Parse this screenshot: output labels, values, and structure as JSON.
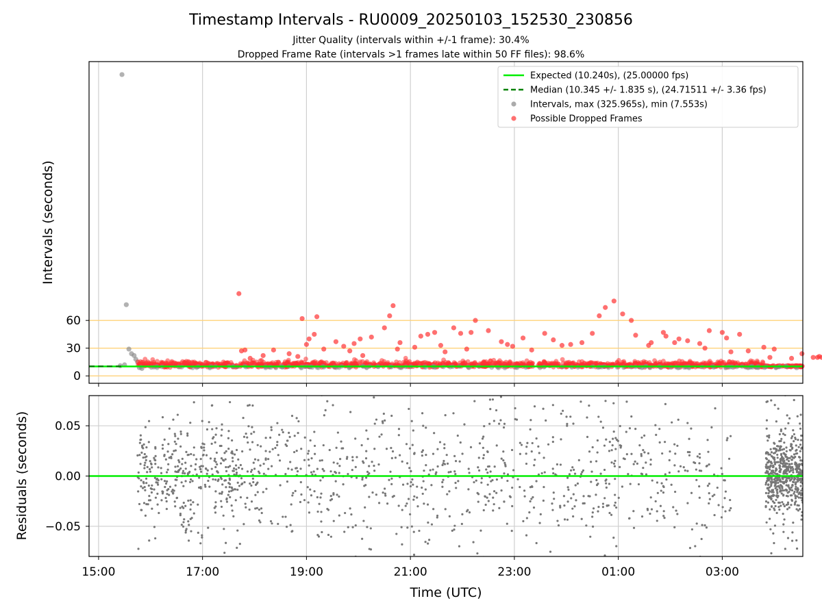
{
  "chart_data": [
    {
      "type": "scatter",
      "panel": "intervals",
      "title": "Timestamp Intervals - RU0009_20250103_152530_230856",
      "subtitle_lines": [
        "Jitter Quality (intervals within +/-1 frame): 30.4%",
        "Dropped Frame Rate (intervals >1 frames late within 50 FF files): 98.6%"
      ],
      "ylabel": "Intervals (seconds)",
      "x_range_utc": [
        "14:49",
        "04:33"
      ],
      "y_range": [
        -8,
        340
      ],
      "y_ticks": [
        0,
        30,
        60
      ],
      "y_tick_labels": [
        "0",
        "30",
        "60"
      ],
      "x_ticks": [
        "15:00",
        "17:00",
        "19:00",
        "21:00",
        "23:00",
        "01:00",
        "03:00"
      ],
      "reference_lines": [
        0,
        30,
        60
      ],
      "reference_line_color": "#ffd27a",
      "grid": "vertical",
      "legend_position": "top-right",
      "legend": [
        {
          "label": "Expected (10.240s), (25.00000 fps)",
          "kind": "line",
          "color": "#00ee00",
          "dash": false
        },
        {
          "label": "Median (10.345 +/- 1.835 s), (24.71511 +/- 3.36 fps)",
          "kind": "line",
          "color": "#008000",
          "dash": true
        },
        {
          "label": "Intervals, max (325.965s), min (7.553s)",
          "kind": "marker",
          "color": "#888888"
        },
        {
          "label": "Possible Dropped Frames",
          "kind": "marker",
          "color": "#ff3333"
        }
      ],
      "series": [
        {
          "name": "Expected (10.240s), (25.00000 fps)",
          "kind": "hline",
          "value": 10.24,
          "color": "#00ee00"
        },
        {
          "name": "Median (10.345 +/- 1.835 s), (24.71511 +/- 3.36 fps)",
          "kind": "hline_partial",
          "value": 10.345,
          "x_start": "14:49",
          "x_end": "15:30",
          "color": "#008000"
        },
        {
          "name": "Intervals, max (325.965s), min (7.553s)",
          "kind": "points",
          "color": "#888888",
          "points": [
            [
              "15:27",
              325.965
            ],
            [
              "15:32",
              77
            ],
            [
              "15:35",
              29
            ],
            [
              "15:38",
              24
            ],
            [
              "15:41",
              22
            ],
            [
              "15:43",
              18
            ],
            [
              "15:45",
              15
            ],
            [
              "15:25",
              11
            ],
            [
              "15:30",
              12
            ],
            [
              "15:47",
              9
            ],
            [
              "15:50",
              8
            ],
            [
              "15:52",
              13
            ]
          ]
        },
        {
          "name": "Possible Dropped Frames",
          "kind": "points",
          "color": "#ff3333",
          "band": {
            "from": "15:45",
            "to": "04:33",
            "low": 9,
            "high": 15
          },
          "points": [
            [
              "17:42",
              89
            ],
            [
              "18:55",
              62
            ],
            [
              "19:03",
              40
            ],
            [
              "19:09",
              45
            ],
            [
              "19:12",
              64
            ],
            [
              "17:45",
              27
            ],
            [
              "17:49",
              28
            ],
            [
              "18:22",
              28
            ],
            [
              "18:50",
              21
            ],
            [
              "19:00",
              34
            ],
            [
              "19:20",
              29
            ],
            [
              "19:34",
              37
            ],
            [
              "19:43",
              32
            ],
            [
              "19:55",
              35
            ],
            [
              "20:02",
              40
            ],
            [
              "20:15",
              42
            ],
            [
              "20:30",
              52
            ],
            [
              "20:36",
              65
            ],
            [
              "20:45",
              29
            ],
            [
              "20:48",
              36
            ],
            [
              "20:40",
              76
            ],
            [
              "21:05",
              31
            ],
            [
              "21:12",
              43
            ],
            [
              "21:20",
              45
            ],
            [
              "21:28",
              47
            ],
            [
              "21:35",
              33
            ],
            [
              "21:50",
              52
            ],
            [
              "21:58",
              46
            ],
            [
              "22:10",
              47
            ],
            [
              "22:15",
              60
            ],
            [
              "22:30",
              49
            ],
            [
              "22:45",
              37
            ],
            [
              "22:52",
              34
            ],
            [
              "22:58",
              32
            ],
            [
              "23:10",
              41
            ],
            [
              "23:35",
              46
            ],
            [
              "23:45",
              39
            ],
            [
              "23:55",
              33
            ],
            [
              "24:05",
              34
            ],
            [
              "24:18",
              36
            ],
            [
              "24:38",
              65
            ],
            [
              "24:45",
              74
            ],
            [
              "24:55",
              81
            ],
            [
              "25:05",
              67
            ],
            [
              "25:15",
              60
            ],
            [
              "25:20",
              44
            ],
            [
              "25:35",
              33
            ],
            [
              "25:38",
              36
            ],
            [
              "25:52",
              47
            ],
            [
              "25:55",
              43
            ],
            [
              "26:05",
              36
            ],
            [
              "26:20",
              38
            ],
            [
              "26:34",
              35
            ],
            [
              "26:40",
              30
            ],
            [
              "26:45",
              49
            ],
            [
              "27:00",
              47
            ],
            [
              "27:05",
              41
            ],
            [
              "27:20",
              45
            ],
            [
              "27:30",
              27
            ],
            [
              "27:48",
              31
            ],
            [
              "28:00",
              29
            ],
            [
              "28:20",
              19
            ],
            [
              "28:32",
              24
            ],
            [
              "26:10",
              40
            ],
            [
              "24:30",
              46
            ],
            [
              "19:50",
              27
            ],
            [
              "20:05",
              22
            ],
            [
              "21:40",
              26
            ],
            [
              "22:05",
              29
            ],
            [
              "23:20",
              28
            ],
            [
              "27:10",
              26
            ],
            [
              "27:55",
              20
            ],
            [
              "18:10",
              22
            ],
            [
              "18:40",
              24
            ],
            [
              "17:55",
              19
            ],
            [
              "28:50",
              20
            ],
            [
              "28:55",
              20
            ],
            [
              "29:00",
              20
            ],
            [
              "29:10",
              20
            ],
            [
              "29:20",
              20
            ],
            [
              "29:30",
              20
            ],
            [
              "28:45",
              20
            ],
            [
              "29:05",
              20
            ],
            [
              "28:52",
              21
            ],
            [
              "29:15",
              20
            ]
          ]
        }
      ]
    },
    {
      "type": "scatter",
      "panel": "residuals",
      "ylabel": "Residuals (seconds)",
      "xlabel": "Time (UTC)",
      "x_range_utc": [
        "14:49",
        "04:33"
      ],
      "y_range": [
        -0.08,
        0.08
      ],
      "y_ticks": [
        0.05,
        0.0,
        -0.05
      ],
      "y_tick_labels": [
        "0.05",
        "0.00",
        "−0.05"
      ],
      "x_ticks": [
        "15:00",
        "17:00",
        "19:00",
        "21:00",
        "23:00",
        "01:00",
        "03:00"
      ],
      "grid": "both",
      "zero_line_color": "#00ee00",
      "point_color": "#777777",
      "dense_segments": [
        {
          "from": "15:45",
          "to": "18:05",
          "spread": 0.028,
          "count": 420
        },
        {
          "from": "18:05",
          "to": "21:00",
          "spread": 0.034,
          "count": 260
        },
        {
          "from": "21:00",
          "to": "24:00",
          "spread": 0.036,
          "count": 260
        },
        {
          "from": "24:00",
          "to": "27:10",
          "spread": 0.035,
          "count": 260
        },
        {
          "from": "27:50",
          "to": "28:33",
          "spread": 0.02,
          "count": 560
        }
      ]
    }
  ]
}
